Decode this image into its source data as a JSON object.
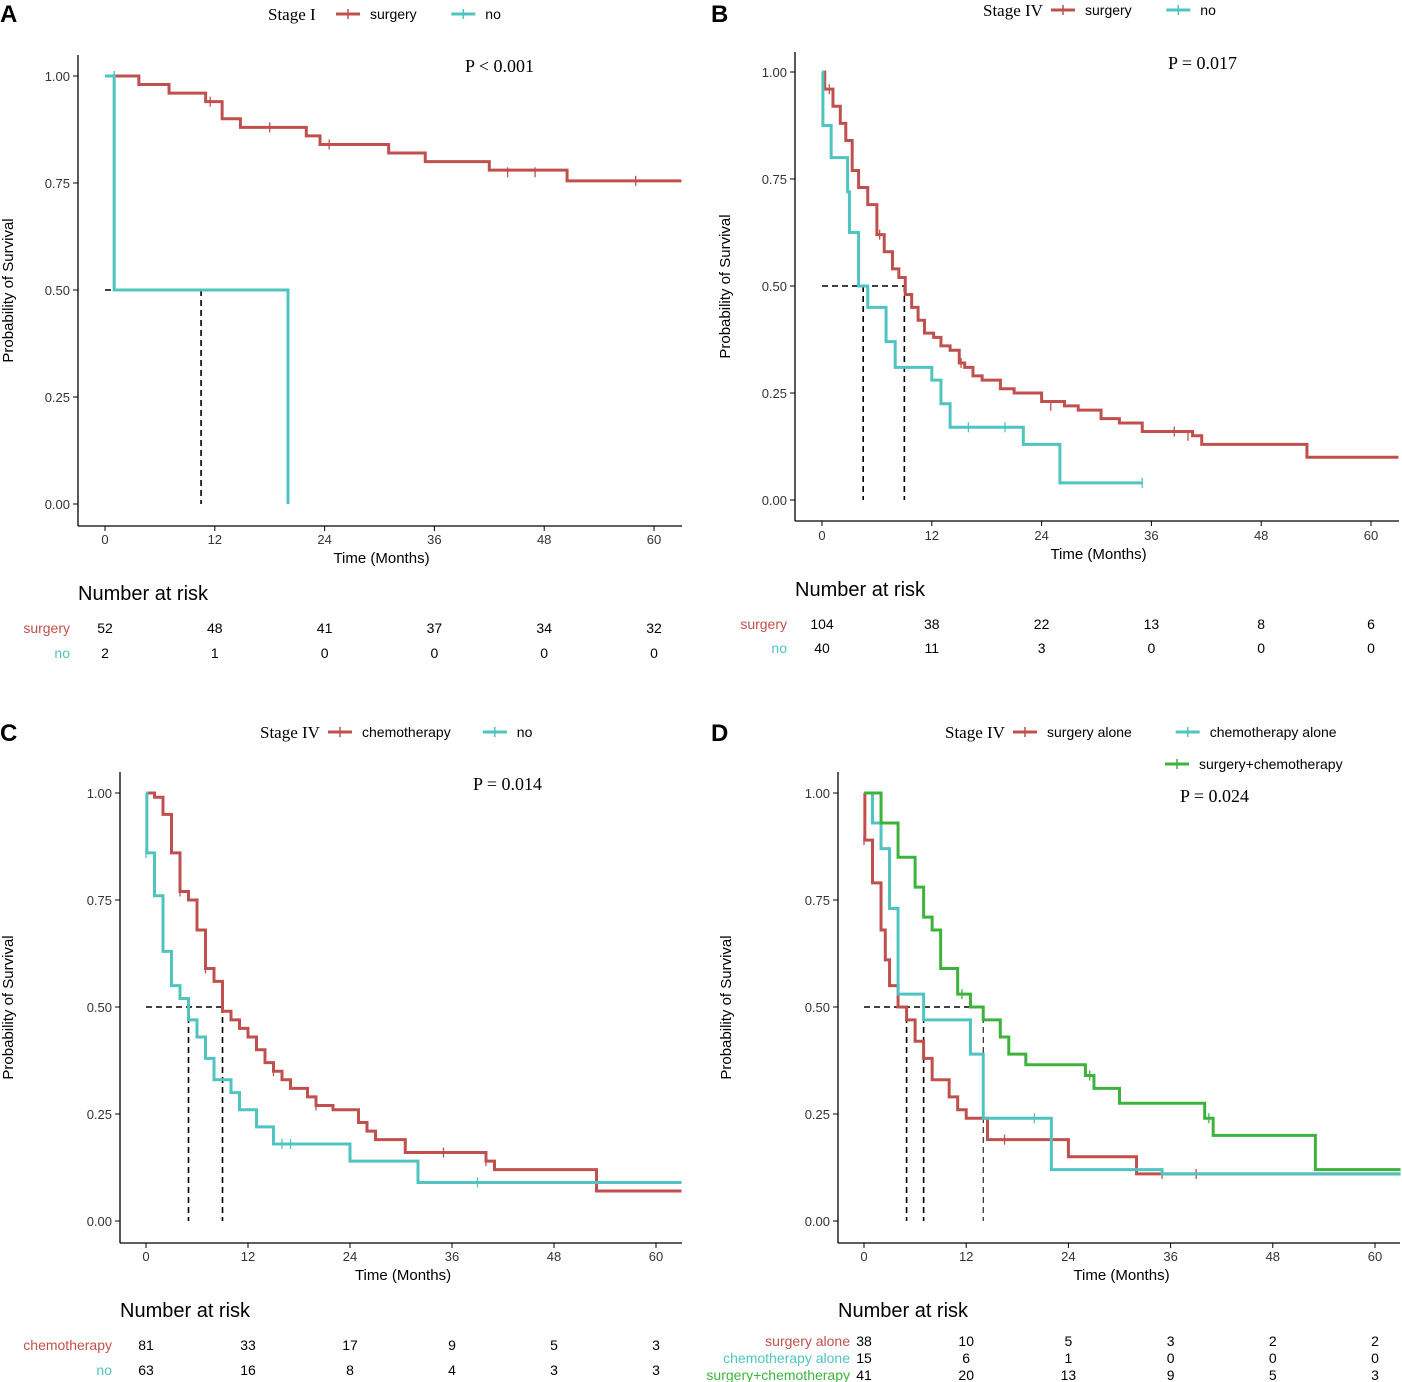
{
  "figure": {
    "x_axis_label": "Time (Months)",
    "y_axis_label": "Probability of Survival",
    "risk_title": "Number at risk"
  },
  "colors": {
    "surgery": "#C0504D",
    "no": "#4FC4C0",
    "combined": "#3DB33D"
  },
  "chart_data": [
    {
      "type": "line",
      "panel": "A",
      "legend_title": "Stage I",
      "p_value": "P < 0.001",
      "xlim": [
        0,
        63
      ],
      "ylim": [
        0,
        1
      ],
      "x_ticks": [
        "0",
        "12",
        "24",
        "36",
        "48",
        "60"
      ],
      "y_ticks": [
        "0.00",
        "0.25",
        "0.50",
        "0.75",
        "1.00"
      ],
      "median_times": [
        10.5,
        20
      ],
      "series": [
        {
          "name": "surgery",
          "color": "#C0504D",
          "steps": [
            [
              0,
              1
            ],
            [
              3.7,
              0.98
            ],
            [
              7,
              0.96
            ],
            [
              11,
              0.94
            ],
            [
              12.8,
              0.9
            ],
            [
              14.8,
              0.88
            ],
            [
              22,
              0.86
            ],
            [
              23.5,
              0.84
            ],
            [
              31,
              0.82
            ],
            [
              35,
              0.8
            ],
            [
              42,
              0.78
            ],
            [
              50.5,
              0.755
            ],
            [
              63,
              0.755
            ]
          ],
          "censor": [
            [
              1,
              1
            ],
            [
              11.5,
              0.94
            ],
            [
              18,
              0.88
            ],
            [
              24.5,
              0.84
            ],
            [
              44,
              0.775
            ],
            [
              47,
              0.775
            ],
            [
              58,
              0.755
            ]
          ]
        },
        {
          "name": "no",
          "color": "#4FC4C0",
          "steps": [
            [
              0,
              1
            ],
            [
              1,
              0.5
            ],
            [
              20,
              0
            ]
          ],
          "censor": [
            [
              1,
              1
            ]
          ]
        }
      ],
      "risk_table": [
        {
          "name": "surgery",
          "values": [
            "52",
            "48",
            "41",
            "37",
            "34",
            "32"
          ]
        },
        {
          "name": "no",
          "values": [
            "2",
            "1",
            "0",
            "0",
            "0",
            "0"
          ]
        }
      ]
    },
    {
      "type": "line",
      "panel": "B",
      "legend_title": "Stage IV",
      "p_value": "P = 0.017",
      "xlim": [
        0,
        63
      ],
      "ylim": [
        0,
        1
      ],
      "x_ticks": [
        "0",
        "12",
        "24",
        "36",
        "48",
        "60"
      ],
      "y_ticks": [
        "0.00",
        "0.25",
        "0.50",
        "0.75",
        "1.00"
      ],
      "median_times": [
        4.5,
        9
      ],
      "series": [
        {
          "name": "surgery",
          "color": "#C0504D",
          "steps": [
            [
              0,
              1
            ],
            [
              0.3,
              0.96
            ],
            [
              1.2,
              0.92
            ],
            [
              2,
              0.88
            ],
            [
              2.6,
              0.84
            ],
            [
              3.3,
              0.77
            ],
            [
              4,
              0.73
            ],
            [
              5,
              0.69
            ],
            [
              6,
              0.62
            ],
            [
              6.8,
              0.58
            ],
            [
              7.7,
              0.54
            ],
            [
              8.4,
              0.52
            ],
            [
              9.1,
              0.48
            ],
            [
              9.8,
              0.45
            ],
            [
              10.5,
              0.42
            ],
            [
              11.2,
              0.39
            ],
            [
              12.2,
              0.38
            ],
            [
              13,
              0.36
            ],
            [
              14,
              0.35
            ],
            [
              15,
              0.32
            ],
            [
              15.6,
              0.31
            ],
            [
              16.5,
              0.29
            ],
            [
              17.5,
              0.28
            ],
            [
              19.5,
              0.26
            ],
            [
              21,
              0.25
            ],
            [
              24,
              0.23
            ],
            [
              26.5,
              0.22
            ],
            [
              28,
              0.21
            ],
            [
              30.5,
              0.19
            ],
            [
              32.5,
              0.18
            ],
            [
              35,
              0.16
            ],
            [
              40.5,
              0.15
            ],
            [
              41.5,
              0.13
            ],
            [
              53,
              0.1
            ],
            [
              63,
              0.1
            ]
          ],
          "censor": [
            [
              0.8,
              0.96
            ],
            [
              6.3,
              0.62
            ],
            [
              15.2,
              0.32
            ],
            [
              25,
              0.22
            ],
            [
              38.5,
              0.16
            ],
            [
              40,
              0.15
            ]
          ]
        },
        {
          "name": "no",
          "color": "#4FC4C0",
          "steps": [
            [
              0,
              1
            ],
            [
              0.1,
              0.875
            ],
            [
              1,
              0.8
            ],
            [
              2.8,
              0.72
            ],
            [
              3,
              0.625
            ],
            [
              4,
              0.5
            ],
            [
              5,
              0.45
            ],
            [
              7,
              0.37
            ],
            [
              8,
              0.31
            ],
            [
              12,
              0.28
            ],
            [
              13,
              0.225
            ],
            [
              14,
              0.17
            ],
            [
              22,
              0.13
            ],
            [
              26,
              0.04
            ],
            [
              35,
              0.04
            ]
          ],
          "censor": [
            [
              16,
              0.17
            ],
            [
              20,
              0.17
            ],
            [
              35,
              0.04
            ]
          ]
        }
      ],
      "risk_table": [
        {
          "name": "surgery",
          "values": [
            "104",
            "38",
            "22",
            "13",
            "8",
            "6"
          ]
        },
        {
          "name": "no",
          "values": [
            "40",
            "11",
            "3",
            "0",
            "0",
            "0"
          ]
        }
      ]
    },
    {
      "type": "line",
      "panel": "C",
      "legend_title": "Stage IV",
      "p_value": "P = 0.014",
      "xlim": [
        -3,
        63
      ],
      "ylim": [
        0,
        1
      ],
      "x_ticks": [
        "0",
        "12",
        "24",
        "36",
        "48",
        "60"
      ],
      "y_ticks": [
        "0.00",
        "0.25",
        "0.50",
        "0.75",
        "1.00"
      ],
      "median_times": [
        5,
        9
      ],
      "series": [
        {
          "name": "chemotherapy",
          "color": "#C0504D",
          "steps": [
            [
              0,
              1
            ],
            [
              1,
              0.99
            ],
            [
              2,
              0.95
            ],
            [
              3,
              0.86
            ],
            [
              4,
              0.77
            ],
            [
              5,
              0.75
            ],
            [
              6,
              0.68
            ],
            [
              7,
              0.59
            ],
            [
              8,
              0.56
            ],
            [
              9,
              0.49
            ],
            [
              10,
              0.47
            ],
            [
              11,
              0.45
            ],
            [
              12,
              0.43
            ],
            [
              13,
              0.4
            ],
            [
              14,
              0.37
            ],
            [
              15,
              0.35
            ],
            [
              16,
              0.33
            ],
            [
              17,
              0.31
            ],
            [
              19,
              0.29
            ],
            [
              20,
              0.27
            ],
            [
              22,
              0.26
            ],
            [
              25,
              0.23
            ],
            [
              26,
              0.21
            ],
            [
              27,
              0.19
            ],
            [
              30.5,
              0.16
            ],
            [
              40,
              0.14
            ],
            [
              41,
              0.12
            ],
            [
              53,
              0.07
            ],
            [
              63,
              0.07
            ]
          ],
          "censor": [
            [
              4,
              0.77
            ],
            [
              7,
              0.59
            ],
            [
              15,
              0.35
            ],
            [
              20,
              0.27
            ],
            [
              35,
              0.16
            ],
            [
              40,
              0.14
            ]
          ]
        },
        {
          "name": "no",
          "color": "#4FC4C0",
          "steps": [
            [
              0,
              1
            ],
            [
              0.1,
              0.86
            ],
            [
              1,
              0.76
            ],
            [
              2,
              0.63
            ],
            [
              3,
              0.55
            ],
            [
              4,
              0.52
            ],
            [
              5,
              0.47
            ],
            [
              6,
              0.43
            ],
            [
              7,
              0.38
            ],
            [
              8,
              0.33
            ],
            [
              10,
              0.3
            ],
            [
              11,
              0.26
            ],
            [
              13,
              0.22
            ],
            [
              15,
              0.18
            ],
            [
              24,
              0.14
            ],
            [
              32,
              0.09
            ],
            [
              63,
              0.09
            ]
          ],
          "censor": [
            [
              0,
              0.86
            ],
            [
              16,
              0.18
            ],
            [
              17,
              0.18
            ],
            [
              39,
              0.09
            ]
          ]
        }
      ],
      "risk_table": [
        {
          "name": "chemotherapy",
          "values": [
            "81",
            "33",
            "17",
            "9",
            "5",
            "3"
          ]
        },
        {
          "name": "no",
          "values": [
            "63",
            "16",
            "8",
            "4",
            "3",
            "3"
          ]
        }
      ]
    },
    {
      "type": "line",
      "panel": "D",
      "legend_title": "Stage IV",
      "p_value": "P = 0.024",
      "xlim": [
        -3,
        63
      ],
      "ylim": [
        0,
        1
      ],
      "x_ticks": [
        "0",
        "12",
        "24",
        "36",
        "48",
        "60"
      ],
      "y_ticks": [
        "0.00",
        "0.25",
        "0.50",
        "0.75",
        "1.00"
      ],
      "median_times": [
        5,
        7,
        14
      ],
      "series": [
        {
          "name": "surgery alone",
          "color": "#C0504D",
          "steps": [
            [
              0,
              1
            ],
            [
              0.1,
              0.89
            ],
            [
              1,
              0.79
            ],
            [
              2,
              0.68
            ],
            [
              2.5,
              0.61
            ],
            [
              3,
              0.55
            ],
            [
              4,
              0.5
            ],
            [
              5,
              0.47
            ],
            [
              6,
              0.42
            ],
            [
              7,
              0.38
            ],
            [
              8,
              0.33
            ],
            [
              10,
              0.29
            ],
            [
              11,
              0.26
            ],
            [
              12,
              0.24
            ],
            [
              14.5,
              0.19
            ],
            [
              24,
              0.15
            ],
            [
              32,
              0.11
            ],
            [
              63,
              0.11
            ]
          ],
          "censor": [
            [
              0,
              0.89
            ],
            [
              16.5,
              0.19
            ],
            [
              35,
              0.11
            ],
            [
              39,
              0.11
            ]
          ]
        },
        {
          "name": "chemotherapy alone",
          "color": "#4FC4C0",
          "steps": [
            [
              0,
              1
            ],
            [
              1,
              0.93
            ],
            [
              2,
              0.87
            ],
            [
              3,
              0.73
            ],
            [
              4,
              0.53
            ],
            [
              7,
              0.47
            ],
            [
              12.5,
              0.39
            ],
            [
              14,
              0.24
            ],
            [
              22,
              0.12
            ],
            [
              35,
              0.11
            ],
            [
              63,
              0.11
            ]
          ],
          "censor": [
            [
              20,
              0.24
            ]
          ]
        },
        {
          "name": "surgery+chemotherapy",
          "color": "#3DB33D",
          "steps": [
            [
              0,
              1
            ],
            [
              2,
              0.93
            ],
            [
              4,
              0.85
            ],
            [
              6,
              0.78
            ],
            [
              7,
              0.71
            ],
            [
              8,
              0.68
            ],
            [
              9,
              0.59
            ],
            [
              11,
              0.53
            ],
            [
              12.5,
              0.5
            ],
            [
              14,
              0.47
            ],
            [
              16,
              0.43
            ],
            [
              17,
              0.39
            ],
            [
              19,
              0.365
            ],
            [
              26,
              0.34
            ],
            [
              27,
              0.31
            ],
            [
              30,
              0.275
            ],
            [
              40,
              0.24
            ],
            [
              41,
              0.2
            ],
            [
              53,
              0.12
            ],
            [
              63,
              0.12
            ]
          ],
          "censor": [
            [
              11.5,
              0.53
            ],
            [
              26.5,
              0.34
            ],
            [
              40.5,
              0.24
            ]
          ]
        }
      ],
      "risk_table": [
        {
          "name": "surgery alone",
          "values": [
            "38",
            "10",
            "5",
            "3",
            "2",
            "2"
          ]
        },
        {
          "name": "chemotherapy alone",
          "values": [
            "15",
            "6",
            "1",
            "0",
            "0",
            "0"
          ]
        },
        {
          "name": "surgery+chemotherapy",
          "values": [
            "41",
            "20",
            "13",
            "9",
            "5",
            "3"
          ]
        }
      ]
    }
  ]
}
